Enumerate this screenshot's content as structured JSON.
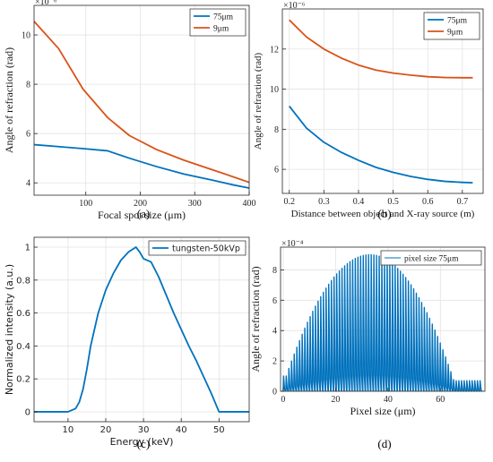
{
  "chart_data": [
    {
      "type": "line",
      "panel_label": "(a)",
      "title": "",
      "xlabel": "Focal spot size (μm)",
      "ylabel": "Angle of refraction (rad)",
      "exponent": "×10⁻⁶",
      "xlim": [
        5,
        400
      ],
      "ylim": [
        3.5,
        11.2
      ],
      "xticks": [
        100,
        200,
        300,
        400
      ],
      "yticks": [
        4,
        6,
        8,
        10
      ],
      "legend_position": "top-right",
      "series": [
        {
          "name": "75μm",
          "color": "#0072BD",
          "points": [
            [
              5,
              5.55
            ],
            [
              50,
              5.47
            ],
            [
              100,
              5.38
            ],
            [
              140,
              5.3
            ],
            [
              180,
              5.0
            ],
            [
              230,
              4.66
            ],
            [
              280,
              4.36
            ],
            [
              330,
              4.12
            ],
            [
              370,
              3.92
            ],
            [
              400,
              3.79
            ]
          ]
        },
        {
          "name": "9μm",
          "color": "#D95319",
          "points": [
            [
              5,
              10.55
            ],
            [
              50,
              9.45
            ],
            [
              95,
              7.8
            ],
            [
              140,
              6.65
            ],
            [
              180,
              5.92
            ],
            [
              230,
              5.35
            ],
            [
              280,
              4.92
            ],
            [
              330,
              4.55
            ],
            [
              370,
              4.25
            ],
            [
              400,
              4.02
            ]
          ]
        }
      ]
    },
    {
      "type": "line",
      "panel_label": "(b)",
      "title": "",
      "xlabel": "Distance between object and X-ray source (m)",
      "ylabel": "Angle of refraction (rad)",
      "exponent": "×10⁻⁶",
      "xlim": [
        0.18,
        0.76
      ],
      "ylim": [
        4.8,
        14.0
      ],
      "xticks": [
        0.2,
        0.3,
        0.4,
        0.5,
        0.6,
        0.7
      ],
      "yticks": [
        6,
        8,
        10,
        12
      ],
      "legend_position": "top-right",
      "series": [
        {
          "name": "75μm",
          "color": "#0072BD",
          "points": [
            [
              0.2,
              9.15
            ],
            [
              0.25,
              8.05
            ],
            [
              0.3,
              7.35
            ],
            [
              0.35,
              6.85
            ],
            [
              0.4,
              6.45
            ],
            [
              0.45,
              6.1
            ],
            [
              0.5,
              5.85
            ],
            [
              0.55,
              5.65
            ],
            [
              0.6,
              5.5
            ],
            [
              0.65,
              5.4
            ],
            [
              0.7,
              5.35
            ],
            [
              0.73,
              5.33
            ]
          ]
        },
        {
          "name": "9μm",
          "color": "#D95319",
          "points": [
            [
              0.2,
              13.45
            ],
            [
              0.25,
              12.6
            ],
            [
              0.3,
              12.0
            ],
            [
              0.35,
              11.55
            ],
            [
              0.4,
              11.2
            ],
            [
              0.45,
              10.95
            ],
            [
              0.5,
              10.8
            ],
            [
              0.55,
              10.7
            ],
            [
              0.6,
              10.62
            ],
            [
              0.65,
              10.58
            ],
            [
              0.7,
              10.57
            ],
            [
              0.73,
              10.57
            ]
          ]
        }
      ]
    },
    {
      "type": "line",
      "panel_label": "(c)",
      "title": "",
      "xlabel": "Energy (keV)",
      "ylabel": "Normalized intensity (a.u.)",
      "exponent": "",
      "xlim": [
        1,
        58
      ],
      "ylim": [
        -0.06,
        1.06
      ],
      "xticks": [
        10,
        20,
        30,
        40,
        50
      ],
      "yticks": [
        0,
        0.2,
        0.4,
        0.6,
        0.8,
        1
      ],
      "legend_position": "top-right",
      "series": [
        {
          "name": "tungsten-50kVp",
          "color": "#0072BD",
          "points": [
            [
              1,
              0
            ],
            [
              10,
              0
            ],
            [
              12,
              0.02
            ],
            [
              13,
              0.06
            ],
            [
              14,
              0.14
            ],
            [
              15,
              0.26
            ],
            [
              16,
              0.4
            ],
            [
              17,
              0.5
            ],
            [
              18,
              0.6
            ],
            [
              20,
              0.74
            ],
            [
              22,
              0.84
            ],
            [
              24,
              0.92
            ],
            [
              26,
              0.97
            ],
            [
              28,
              1.0
            ],
            [
              29,
              0.97
            ],
            [
              30,
              0.93
            ],
            [
              32,
              0.91
            ],
            [
              34,
              0.82
            ],
            [
              36,
              0.71
            ],
            [
              38,
              0.6
            ],
            [
              40,
              0.5
            ],
            [
              42,
              0.4
            ],
            [
              44,
              0.31
            ],
            [
              46,
              0.21
            ],
            [
              48,
              0.11
            ],
            [
              50,
              0
            ],
            [
              58,
              0
            ]
          ]
        }
      ]
    },
    {
      "type": "line",
      "panel_label": "(d)",
      "title": "",
      "xlabel": "Pixel size (μm)",
      "ylabel": "Angle of refraction (rad)",
      "exponent": "×10⁻⁴",
      "xlim": [
        -1,
        77
      ],
      "ylim": [
        0,
        9.5
      ],
      "xticks": [
        0,
        20,
        40,
        60
      ],
      "yticks": [
        0,
        2,
        4,
        6,
        8
      ],
      "legend_position": "top-right",
      "envelope": {
        "peak_x": 33,
        "peak_y": 9.0,
        "start_y": 1.0,
        "end_y": 0.7,
        "start_x": 0,
        "end_x": 75,
        "half_width": 32
      },
      "series": [
        {
          "name": "pixel size 75μm",
          "color": "#0072BD"
        }
      ]
    }
  ]
}
